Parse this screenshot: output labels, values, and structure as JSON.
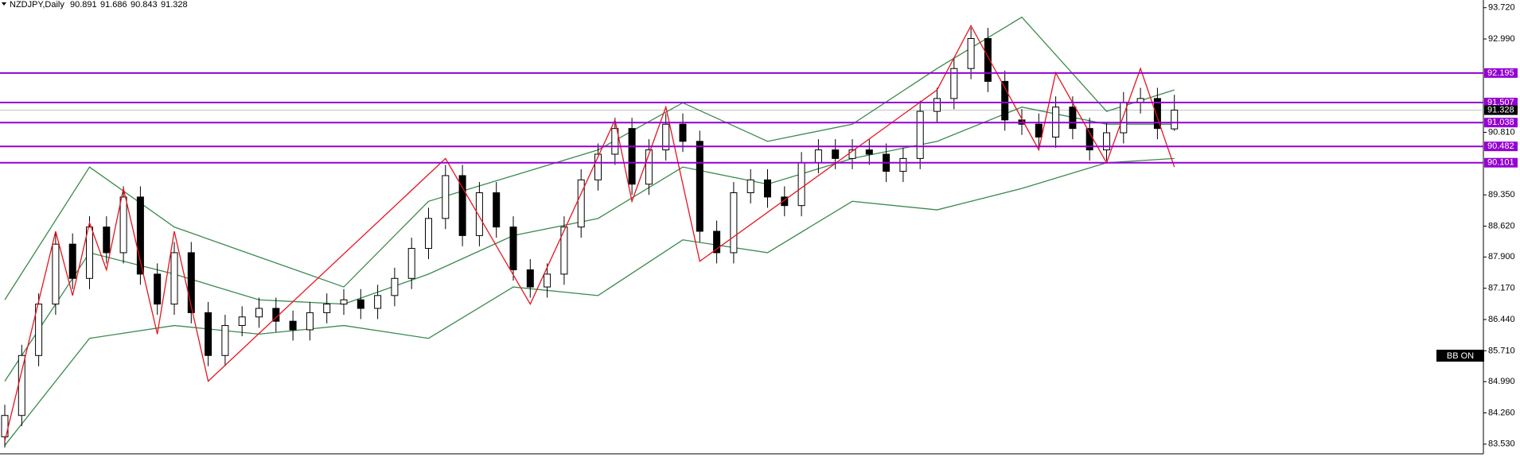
{
  "chart_data": {
    "type": "candlestick",
    "title": "NZDJPY,Daily",
    "header_ohlc": [
      90.891,
      91.686,
      90.843,
      91.328
    ],
    "open": [
      83.7,
      84.2,
      85.6,
      86.8,
      88.2,
      87.4,
      88.6,
      88.0,
      89.3,
      87.5,
      86.8,
      88.0,
      86.6,
      85.6,
      86.3,
      86.5,
      86.7,
      86.4,
      86.2,
      86.6,
      86.8,
      86.9,
      86.7,
      87.0,
      87.4,
      88.1,
      88.8,
      89.8,
      88.4,
      89.4,
      88.6,
      87.6,
      87.2,
      87.5,
      88.6,
      89.7,
      90.3,
      90.9,
      89.6,
      90.4,
      91.0,
      90.6,
      88.5,
      88.0,
      89.4,
      89.7,
      89.3,
      89.1,
      90.1,
      90.4,
      90.2,
      90.4,
      90.3,
      89.9,
      90.2,
      91.3,
      91.6,
      92.3,
      93.0,
      92.0,
      91.1,
      91.0,
      90.7,
      91.4,
      90.9,
      90.4,
      90.8,
      91.5,
      91.6,
      90.891
    ],
    "high": [
      84.45,
      85.85,
      87.05,
      88.45,
      88.45,
      88.85,
      88.85,
      89.55,
      89.55,
      87.75,
      88.25,
      88.25,
      86.85,
      86.55,
      86.75,
      86.95,
      86.95,
      86.65,
      86.85,
      87.05,
      87.15,
      87.15,
      87.25,
      87.65,
      88.35,
      89.05,
      90.05,
      90.05,
      89.65,
      89.65,
      88.85,
      87.85,
      87.75,
      88.85,
      89.95,
      90.55,
      91.15,
      91.15,
      90.65,
      91.25,
      91.25,
      90.85,
      88.75,
      89.65,
      89.95,
      89.95,
      89.55,
      90.35,
      90.65,
      90.65,
      90.65,
      90.65,
      90.55,
      90.45,
      91.55,
      91.85,
      92.55,
      93.25,
      93.25,
      92.25,
      91.35,
      91.25,
      91.65,
      91.65,
      91.15,
      91.05,
      91.75,
      91.85,
      91.85,
      91.686
    ],
    "low": [
      83.45,
      83.95,
      85.35,
      86.55,
      87.15,
      87.15,
      87.75,
      87.75,
      87.25,
      86.55,
      86.55,
      86.35,
      85.35,
      85.35,
      86.05,
      86.25,
      86.15,
      85.95,
      85.95,
      86.35,
      86.55,
      86.45,
      86.45,
      86.75,
      87.15,
      87.85,
      88.55,
      88.15,
      88.15,
      88.35,
      87.35,
      86.95,
      86.95,
      87.25,
      88.35,
      89.45,
      90.05,
      89.35,
      89.35,
      90.15,
      90.35,
      88.25,
      87.75,
      87.75,
      89.15,
      89.05,
      88.85,
      88.85,
      89.85,
      89.95,
      89.95,
      90.05,
      89.65,
      89.65,
      89.95,
      91.05,
      91.35,
      92.05,
      91.75,
      90.85,
      90.75,
      90.45,
      90.45,
      90.65,
      90.15,
      90.15,
      90.55,
      91.25,
      90.65,
      90.843
    ],
    "close": [
      84.2,
      85.6,
      86.8,
      88.2,
      87.4,
      88.6,
      88.0,
      89.3,
      87.5,
      86.8,
      88.0,
      86.6,
      85.6,
      86.3,
      86.5,
      86.7,
      86.4,
      86.2,
      86.6,
      86.8,
      86.9,
      86.7,
      87.0,
      87.4,
      88.1,
      88.8,
      89.8,
      88.4,
      89.4,
      88.6,
      87.6,
      87.2,
      87.5,
      88.6,
      89.7,
      90.3,
      90.9,
      89.6,
      90.4,
      91.0,
      90.6,
      88.5,
      88.0,
      89.4,
      89.7,
      89.3,
      89.1,
      90.1,
      90.4,
      90.2,
      90.4,
      90.3,
      89.9,
      90.2,
      91.3,
      91.6,
      92.3,
      93.0,
      92.0,
      91.1,
      91.0,
      90.7,
      91.4,
      90.9,
      90.4,
      90.8,
      91.5,
      91.6,
      90.9,
      91.328
    ],
    "bands": {
      "color": "#3a8a4e",
      "x": [
        0,
        5,
        10,
        15,
        20,
        25,
        30,
        35,
        40,
        45,
        50,
        55,
        60,
        65,
        69
      ],
      "upper": [
        86.9,
        90.0,
        88.6,
        87.9,
        87.2,
        89.2,
        89.8,
        90.4,
        91.5,
        90.6,
        91.0,
        92.3,
        93.5,
        91.3,
        91.8
      ],
      "middle": [
        85.0,
        88.0,
        87.5,
        86.9,
        86.8,
        87.5,
        88.4,
        88.8,
        90.0,
        89.6,
        90.2,
        90.6,
        91.4,
        91.0,
        91.0
      ],
      "lower": [
        83.5,
        86.0,
        86.3,
        86.1,
        86.3,
        86.0,
        87.2,
        87.0,
        88.3,
        88.0,
        89.2,
        89.0,
        89.5,
        90.1,
        90.2
      ]
    },
    "zigzag": {
      "color": "#e8141e",
      "x": [
        0,
        3,
        4,
        5,
        6,
        7,
        9,
        10,
        12,
        26,
        31,
        36,
        37,
        39,
        41,
        55,
        57,
        61,
        62,
        65,
        67,
        69
      ],
      "values": [
        83.6,
        88.5,
        87.0,
        88.7,
        87.6,
        89.5,
        86.1,
        88.5,
        85.0,
        90.2,
        86.8,
        91.1,
        89.2,
        91.4,
        87.8,
        91.8,
        93.3,
        90.4,
        92.2,
        90.1,
        92.3,
        90.0
      ]
    },
    "levels": {
      "color": "#9400d3",
      "values": [
        92.195,
        91.507,
        91.038,
        90.482,
        90.101
      ]
    },
    "current_price": 91.328,
    "indicator_label": "BB ON",
    "ylim": [
      83.23,
      93.9
    ],
    "yticks": [
      {
        "value": 93.72,
        "label": "93.720"
      },
      {
        "value": 92.99,
        "label": "92.990"
      },
      {
        "value": 90.81,
        "label": "90.810"
      },
      {
        "value": 89.35,
        "label": "89.350"
      },
      {
        "value": 88.62,
        "label": "88.620"
      },
      {
        "value": 87.9,
        "label": "87.900"
      },
      {
        "value": 87.17,
        "label": "87.170"
      },
      {
        "value": 86.44,
        "label": "86.440"
      },
      {
        "value": 85.71,
        "label": "85.710"
      },
      {
        "value": 84.99,
        "label": "84.990"
      },
      {
        "value": 84.26,
        "label": "84.260"
      },
      {
        "value": 83.53,
        "label": "83.530"
      }
    ]
  }
}
